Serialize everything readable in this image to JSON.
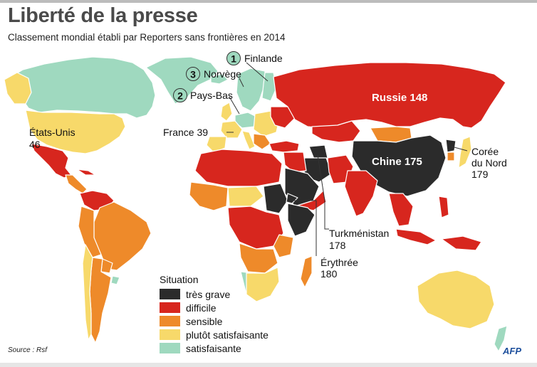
{
  "header": {
    "title": "Liberté de la presse",
    "subtitle": "Classement mondial établi par Reporters sans frontières en 2014"
  },
  "colors": {
    "tres_grave": "#2b2b2b",
    "difficile": "#d7261e",
    "sensible": "#ee8a2a",
    "plutot_satisfaisante": "#f7d96a",
    "satisfaisante": "#9fd9bf",
    "ocean": "#ffffff",
    "border": "#ffffff",
    "afp_blue": "#1d4f9c"
  },
  "map": {
    "labels": {
      "finlande_rank": "1",
      "finlande": "Finlande",
      "norvege_rank": "3",
      "norvege": "Norvège",
      "paysbas_rank": "2",
      "paysbas": "Pays-Bas",
      "france": "France 39",
      "etats_unis": "États-Unis",
      "etats_unis_rank": "46",
      "russie": "Russie 148",
      "chine": "Chine 175",
      "coree_1": "Corée",
      "coree_2": "du Nord",
      "coree_rank": "179",
      "turkmenistan": "Turkménistan",
      "turkmenistan_rank": "178",
      "erythree": "Érythrée",
      "erythree_rank": "180"
    }
  },
  "legend": {
    "title": "Situation",
    "items": [
      {
        "label": "très grave",
        "color": "#2b2b2b"
      },
      {
        "label": "difficile",
        "color": "#d7261e"
      },
      {
        "label": "sensible",
        "color": "#ee8a2a"
      },
      {
        "label": "plutôt satisfaisante",
        "color": "#f7d96a"
      },
      {
        "label": "satisfaisante",
        "color": "#9fd9bf"
      }
    ]
  },
  "footer": {
    "source": "Source : Rsf",
    "logo": "AFP"
  }
}
